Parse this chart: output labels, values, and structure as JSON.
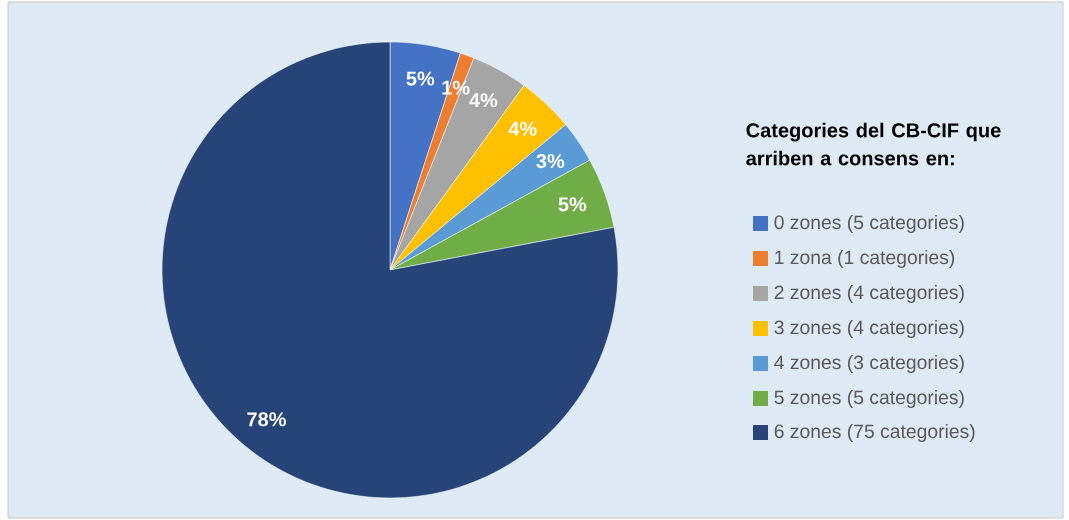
{
  "chart_data": {
    "type": "pie",
    "legend_title": "Categories del CB-CIF que arriben a consens en:",
    "categories": [
      "0 zones (5 categories)",
      "1 zona (1 categories)",
      "2 zones (4 categories)",
      "3 zones (4 categories)",
      "4 zones (3 categories)",
      "5 zones (5 categories)",
      "6 zones (75 categories)"
    ],
    "values": [
      5,
      1,
      4,
      4,
      3,
      5,
      78
    ],
    "value_labels": [
      "5%",
      "1%",
      "4%",
      "4%",
      "3%",
      "5%",
      "78%"
    ],
    "colors": [
      "#4472c4",
      "#ed7d31",
      "#a5a5a5",
      "#ffc000",
      "#5b9bd5",
      "#70ad47",
      "#264478"
    ],
    "legend": "right"
  }
}
